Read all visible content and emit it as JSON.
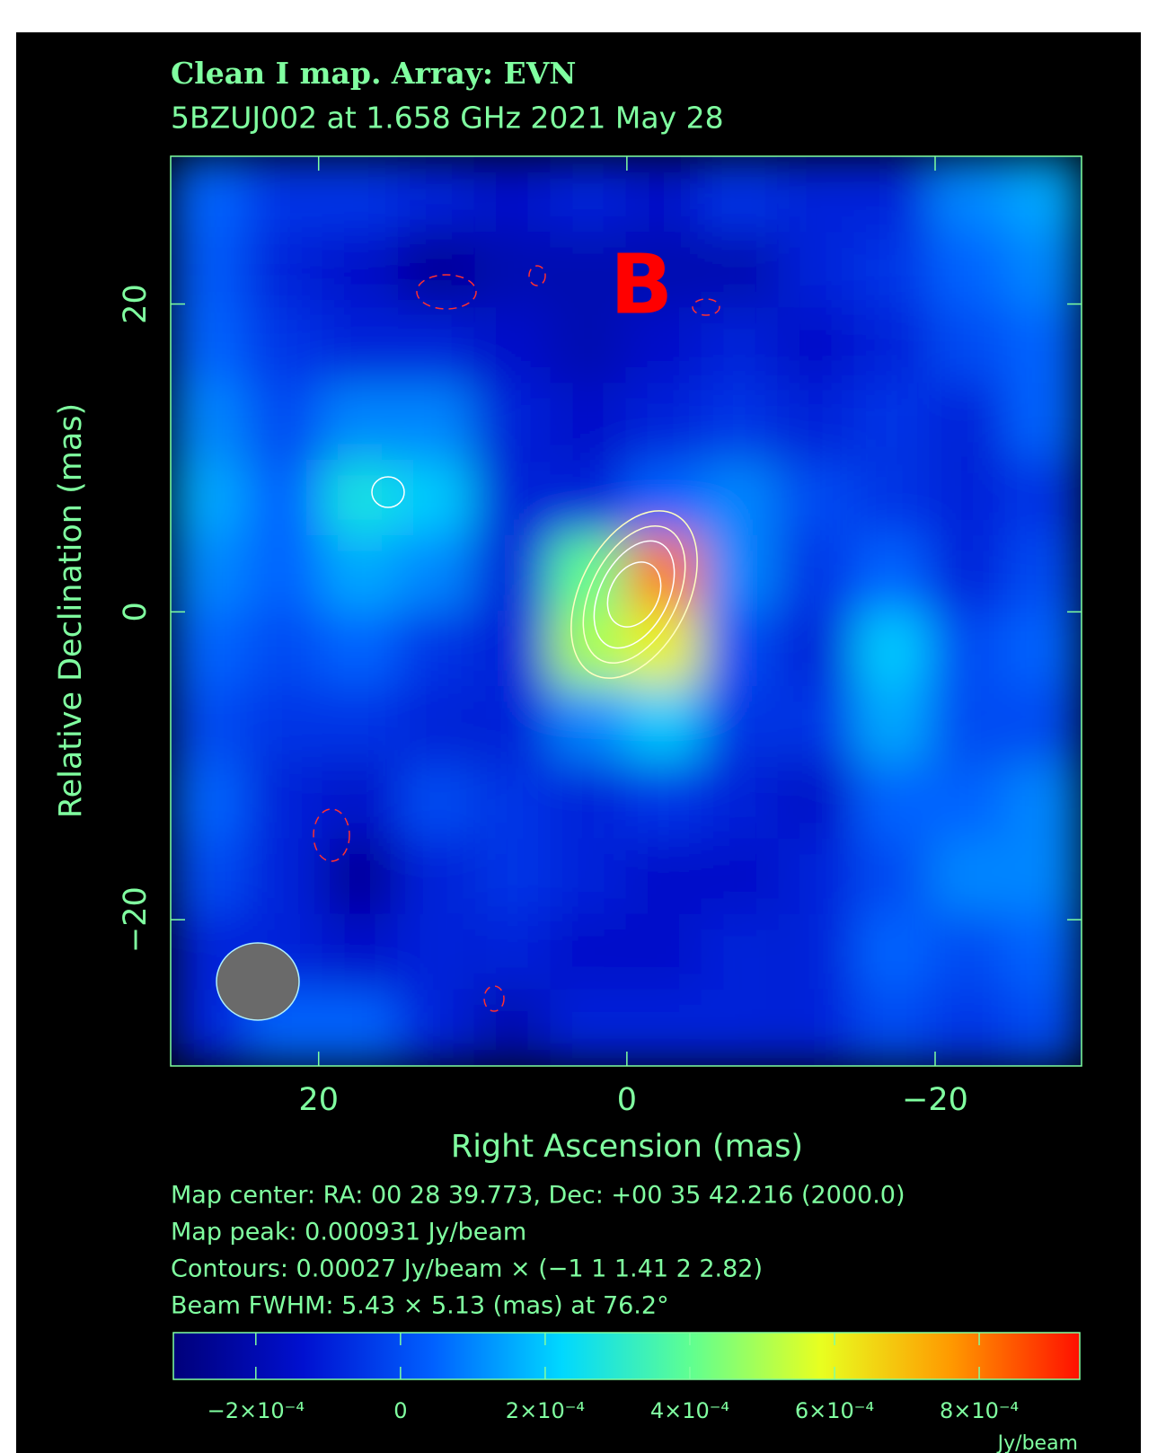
{
  "chart_data": {
    "type": "heatmap",
    "title": "Clean I map.  Array:  EVN",
    "subtitle": "5BZUJ002 at 1.658 GHz 2021 May 28",
    "x_label": "Right Ascension  (mas)",
    "y_label": "Relative Declination  (mas)",
    "annotation": "B",
    "info": [
      "Map center:  RA: 00 28 39.773,  Dec: +00 35 42.216 (2000.0)",
      "Map peak: 0.000931 Jy/beam",
      "Contours: 0.00027 Jy/beam × (−1 1 1.41 2 2.82)",
      "Beam FWHM: 5.43 × 5.13 (mas) at 76.2°"
    ],
    "colorbar_label": "Jy/beam",
    "xlim": [
      29.6,
      -29.5
    ],
    "ylim": [
      -29.5,
      29.6
    ],
    "xticks": [
      20,
      0,
      {
        "value": -20,
        "label": "−20"
      }
    ],
    "yticks": [
      20,
      0,
      {
        "value": -20,
        "label": "−20"
      }
    ],
    "x": [
      27.1,
      22.2,
      17.3,
      12.4,
      7.4,
      2.5,
      -2.4,
      -7.3,
      -12.3,
      -17.2,
      -22.1,
      -27.0
    ],
    "y": [
      27.1,
      22.2,
      17.3,
      12.4,
      7.4,
      2.5,
      -2.4,
      -7.3,
      -12.3,
      -17.2,
      -22.1,
      -27.0
    ],
    "z": [
      [
        5e-05,
        -5e-05,
        -5e-05,
        -0.0001,
        -0.00015,
        -0.0001,
        -0.00015,
        -5e-05,
        -0.0001,
        -0.0001,
        0.0001,
        0.00015
      ],
      [
        3e-05,
        -0.0001,
        -0.00015,
        -0.00025,
        -0.0002,
        -0.0002,
        -0.0002,
        -0.0002,
        -0.0001,
        -5e-05,
        5e-05,
        0.0001
      ],
      [
        5e-05,
        -5e-05,
        -0.0001,
        -0.0001,
        -0.00015,
        -0.0002,
        -0.00015,
        -0.0001,
        -0.00015,
        -0.0001,
        0,
        5e-05
      ],
      [
        0.0001,
        0,
        0.0001,
        0.0001,
        -0.0001,
        -0.00015,
        -0.0001,
        -5e-05,
        -0.0001,
        -5e-05,
        -0.0001,
        5e-05
      ],
      [
        0.00015,
        5e-05,
        0.00027,
        0.0002,
        -0.0001,
        -0.0001,
        5e-05,
        0.0001,
        0,
        -5e-05,
        -0.0001,
        -5e-05
      ],
      [
        0.0001,
        5e-05,
        0.00015,
        0.0001,
        -0.0001,
        0.0004,
        0.0008,
        0.0001,
        -5e-05,
        5e-05,
        -0.0001,
        0
      ],
      [
        5e-05,
        0,
        5e-05,
        -5e-05,
        -0.0001,
        0.0005,
        0.0006,
        0,
        -0.0001,
        0.0002,
        0,
        5e-05
      ],
      [
        0,
        -5e-05,
        -5e-05,
        -0.0001,
        -0.0001,
        0.0001,
        0.0002,
        -5e-05,
        -5e-05,
        0.00015,
        0,
        0
      ],
      [
        5e-05,
        -0.0001,
        -0.00015,
        0,
        -5e-05,
        -0.0001,
        -5e-05,
        -0.0001,
        -0.00015,
        5e-05,
        5e-05,
        0.0001
      ],
      [
        0,
        -0.0001,
        -0.00025,
        -0.0001,
        -5e-05,
        -0.0001,
        -0.00015,
        -0.00015,
        -0.0001,
        0,
        0.0001,
        0.0001
      ],
      [
        -0.0001,
        -0.0001,
        -0.00015,
        -0.0001,
        -0.0001,
        -0.00015,
        -0.00015,
        -0.0001,
        -0.0001,
        5e-05,
        0,
        5e-05
      ],
      [
        -0.0001,
        5e-05,
        5e-05,
        -0.0001,
        -0.0002,
        -0.0001,
        -0.0001,
        -0.0001,
        -0.0001,
        0,
        -5e-05,
        0
      ]
    ],
    "clim": [
      -0.000314,
      0.000939
    ],
    "cticks": [
      {
        "value": -0.0002,
        "label": "−2×10⁻⁴"
      },
      0,
      {
        "value": 0.0002,
        "label": "2×10⁻⁴"
      },
      {
        "value": 0.0004,
        "label": "4×10⁻⁴"
      },
      {
        "value": 0.0006,
        "label": "6×10⁻⁴"
      },
      {
        "value": 0.0008,
        "label": "8×10⁻⁴"
      }
    ],
    "colormap": [
      "#00007a",
      "#0010d0",
      "#0060ff",
      "#00d8ff",
      "#60ff90",
      "#e8ff20",
      "#ff9a00",
      "#ff1000"
    ],
    "axis_color": "#80ffa0"
  }
}
